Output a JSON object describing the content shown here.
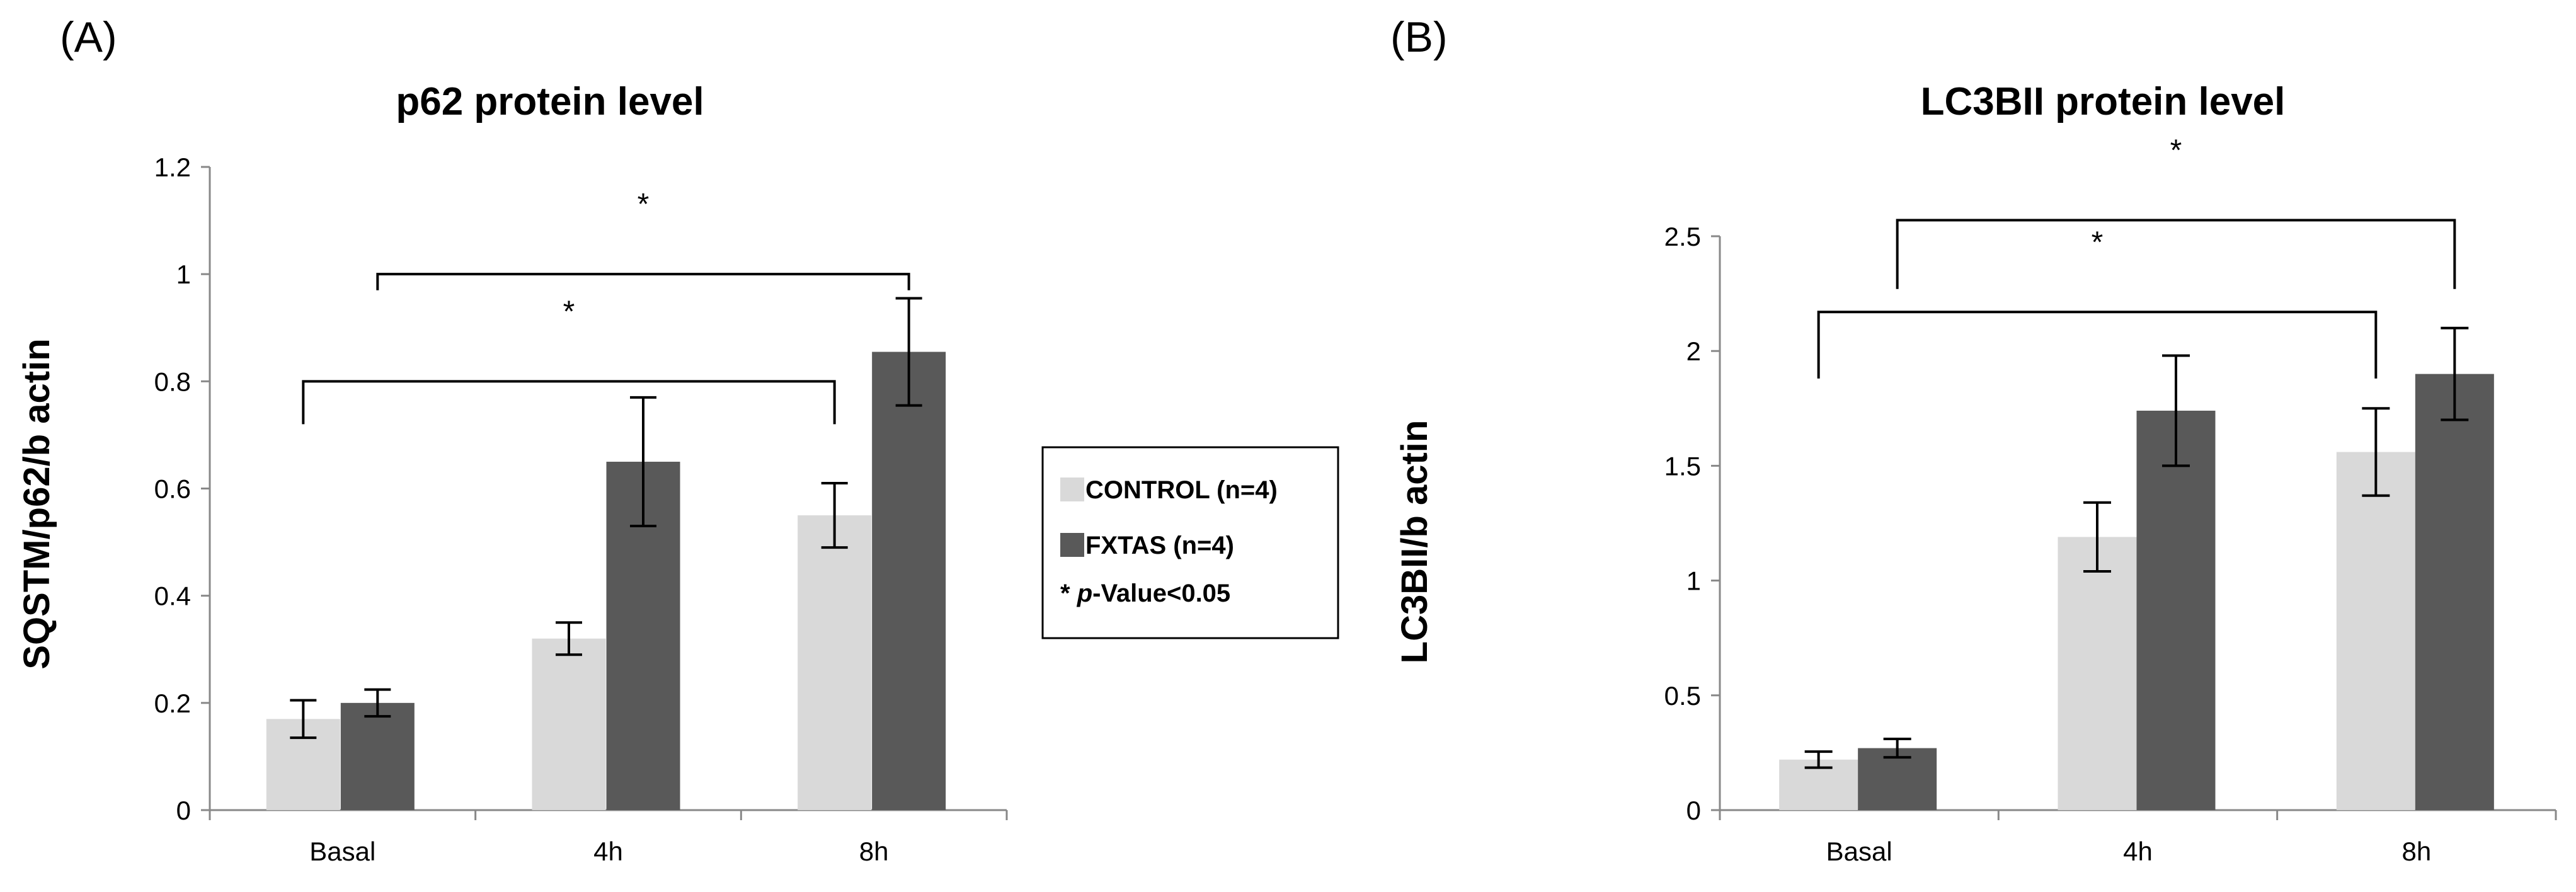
{
  "legend": {
    "items": [
      {
        "label": "CONTROL (n=4)",
        "color": "#d9d9d9"
      },
      {
        "label": "FXTAS (n=4)",
        "color": "#595959"
      }
    ],
    "significance_prefix": "* ",
    "significance_p": "p",
    "significance_rest": "-Value<0.05"
  },
  "chart_data": [
    {
      "panel": "(A)",
      "type": "bar",
      "title": "p62 protein level",
      "xlabel": "",
      "ylabel": "SQSTM/p62/b actin",
      "categories": [
        "Basal",
        "4h",
        "8h"
      ],
      "ylim": [
        0,
        1.2
      ],
      "yticks": [
        0,
        0.2,
        0.4,
        0.6,
        0.8,
        1,
        1.2
      ],
      "ytick_labels": [
        "0",
        "0.2",
        "0.4",
        "0.6",
        "0.8",
        "1",
        "1.2"
      ],
      "series": [
        {
          "name": "CONTROL (n=4)",
          "color": "#d9d9d9",
          "values": [
            0.17,
            0.32,
            0.55
          ],
          "errors": [
            0.035,
            0.03,
            0.06
          ]
        },
        {
          "name": "FXTAS (n=4)",
          "color": "#595959",
          "values": [
            0.2,
            0.65,
            0.855
          ],
          "errors": [
            0.025,
            0.12,
            0.1
          ]
        }
      ],
      "annotations": [
        {
          "label": "*",
          "from_category": 0,
          "from_series": 0,
          "to_category": 2,
          "to_series": 0,
          "y_value": 0.8,
          "drop_to": 0.72
        },
        {
          "label": "*",
          "from_category": 0,
          "from_series": 1,
          "to_category": 2,
          "to_series": 1,
          "y_value": 1.0,
          "drop_to": 0.97
        }
      ]
    },
    {
      "panel": "(B)",
      "type": "bar",
      "title": "LC3BII protein level",
      "xlabel": "",
      "ylabel": "LC3BII/b actin",
      "categories": [
        "Basal",
        "4h",
        "8h"
      ],
      "ylim": [
        0,
        2.5
      ],
      "yticks": [
        0,
        0.5,
        1,
        1.5,
        2,
        2.5
      ],
      "ytick_labels": [
        "0",
        "0.5",
        "1",
        "1.5",
        "2",
        "2.5"
      ],
      "series": [
        {
          "name": "CONTROL (n=4)",
          "color": "#d9d9d9",
          "values": [
            0.22,
            1.19,
            1.56
          ],
          "errors": [
            0.035,
            0.15,
            0.19
          ]
        },
        {
          "name": "FXTAS (n=4)",
          "color": "#595959",
          "values": [
            0.27,
            1.74,
            1.9
          ],
          "errors": [
            0.04,
            0.24,
            0.2
          ]
        }
      ],
      "annotations": [
        {
          "label": "*",
          "from_category": 0,
          "from_series": 0,
          "to_category": 2,
          "to_series": 0,
          "y_value": 2.17,
          "drop_to": 1.88
        },
        {
          "label": "*",
          "from_category": 0,
          "from_series": 1,
          "to_category": 2,
          "to_series": 1,
          "y_value": 2.57,
          "drop_to": 2.27
        }
      ]
    }
  ]
}
